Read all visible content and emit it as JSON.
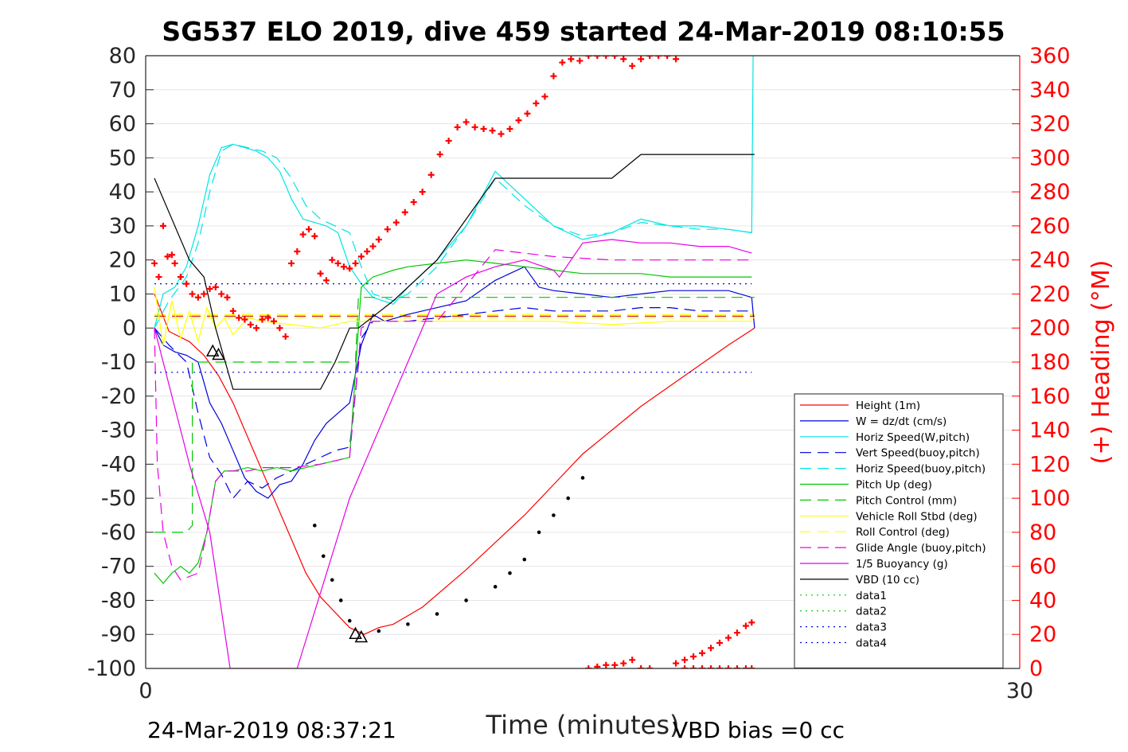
{
  "chart_data": {
    "type": "line",
    "title": "SG537 ELO 2019, dive 459 started 24-Mar-2019 08:10:55",
    "xlabel": "Time (minutes)",
    "ylabel_right": "(+) Heading (°M)",
    "xlim": [
      0,
      30
    ],
    "ylim_left": [
      -100,
      80
    ],
    "ylim_right": [
      0,
      360
    ],
    "x_ticks": [
      "0",
      "30"
    ],
    "y_ticks_left": [
      "80",
      "70",
      "60",
      "50",
      "40",
      "30",
      "20",
      "10",
      "0",
      "-10",
      "-20",
      "-30",
      "-40",
      "-50",
      "-60",
      "-70",
      "-80",
      "-90",
      "-100"
    ],
    "y_ticks_right": [
      "360",
      "340",
      "320",
      "300",
      "280",
      "260",
      "240",
      "220",
      "200",
      "180",
      "160",
      "140",
      "120",
      "100",
      "80",
      "60",
      "40",
      "20",
      "0"
    ],
    "grid": true,
    "legend_position": "lower-right",
    "footer_left": "24-Mar-2019 08:37:21",
    "footer_right": "VBD bias =0 cc",
    "colors": {
      "red": "#ff0000",
      "blue": "#0000ff",
      "cyan": "#00e5e5",
      "green": "#00c800",
      "yellow": "#ffff00",
      "magenta": "#e600e6",
      "black": "#000000"
    },
    "series": [
      {
        "name": "Height (1m)",
        "color": "#ff0000",
        "dash": "solid",
        "axis": "left",
        "x": [
          0.3,
          0.8,
          1.5,
          2.0,
          2.5,
          3.0,
          3.5,
          4.5,
          5.5,
          6.0,
          7.0,
          7.5,
          8.0,
          8.5,
          9.5,
          11,
          13,
          14,
          15,
          17,
          19,
          20,
          20.9
        ],
        "y": [
          10,
          -1,
          -4,
          -8,
          -14,
          -22,
          -32,
          -52,
          -72,
          -79,
          -88,
          -90,
          -88,
          -87,
          -82,
          -71,
          -55,
          -46,
          -37,
          -23,
          -11,
          -5,
          0
        ]
      },
      {
        "name": "W = dz/dt (cm/s)",
        "color": "#0000dd",
        "dash": "solid",
        "axis": "left",
        "x": [
          0.3,
          0.6,
          1.0,
          1.4,
          1.8,
          2.2,
          2.6,
          3.0,
          3.4,
          3.8,
          4.2,
          4.6,
          5.0,
          5.4,
          5.8,
          6.2,
          6.6,
          7.0,
          7.4,
          7.8,
          8.2,
          8.6,
          9,
          10,
          11,
          12,
          13,
          13.5,
          14,
          15,
          16,
          17,
          18,
          19,
          20,
          20.8,
          20.9
        ],
        "y": [
          0,
          -5,
          -7,
          -8,
          -10,
          -22,
          -28,
          -36,
          -44,
          -48,
          -50,
          -46,
          -45,
          -40,
          -33,
          -28,
          -25,
          -22,
          -5,
          4,
          2,
          3,
          4,
          6,
          8,
          14,
          18,
          12,
          11,
          10,
          9,
          10,
          11,
          11,
          11,
          9,
          0
        ]
      },
      {
        "name": "Horiz Speed(W,pitch)",
        "color": "#00e5e5",
        "dash": "solid",
        "axis": "left",
        "x": [
          0.3,
          0.6,
          1.0,
          1.4,
          1.8,
          2.2,
          2.6,
          3.0,
          3.4,
          3.8,
          4.2,
          4.6,
          5.0,
          5.4,
          5.8,
          6.2,
          6.6,
          7.0,
          7.4,
          7.8,
          8.5,
          9,
          10,
          11,
          12,
          13,
          14,
          15,
          16,
          17,
          18,
          19,
          20,
          20.8,
          20.85
        ],
        "y": [
          0,
          10,
          12,
          18,
          30,
          45,
          53,
          54,
          53,
          52,
          50,
          46,
          38,
          32,
          31,
          30,
          28,
          18,
          13,
          9,
          7,
          12,
          20,
          30,
          46,
          38,
          30,
          26,
          28,
          32,
          30,
          30,
          29,
          28,
          80
        ]
      },
      {
        "name": "Vert Speed(buoy,pitch)",
        "color": "#0000dd",
        "dash": "dash",
        "axis": "left",
        "x": [
          0.3,
          0.8,
          1.4,
          1.8,
          2.2,
          2.6,
          3.0,
          3.5,
          4.0,
          4.5,
          5.0,
          5.5,
          6.0,
          6.5,
          7.0,
          7.4,
          7.8,
          8.5,
          9,
          10,
          11,
          12,
          13,
          14,
          15,
          16,
          17,
          18,
          19,
          20,
          20.8
        ],
        "y": [
          0,
          -5,
          -10,
          -25,
          -38,
          -43,
          -50,
          -45,
          -47,
          -44,
          -42,
          -40,
          -38,
          -36,
          -35,
          -3,
          2,
          2,
          2,
          3,
          4,
          5,
          6,
          5,
          5,
          5,
          6,
          6,
          5,
          5,
          5
        ]
      },
      {
        "name": "Horiz Speed(buoy,pitch)",
        "color": "#00e5e5",
        "dash": "dash",
        "axis": "left",
        "x": [
          0.3,
          0.8,
          1.4,
          1.8,
          2.2,
          2.6,
          3.0,
          3.5,
          4.0,
          4.5,
          5.0,
          5.5,
          6.0,
          6.5,
          7.0,
          7.4,
          7.8,
          8.5,
          9,
          10,
          11,
          12,
          13,
          14,
          15,
          16,
          17,
          18,
          19,
          20,
          20.8
        ],
        "y": [
          0,
          8,
          15,
          25,
          40,
          52,
          54,
          53,
          52,
          50,
          44,
          36,
          32,
          30,
          28,
          18,
          10,
          8,
          10,
          18,
          30,
          44,
          36,
          30,
          27,
          28,
          31,
          30,
          29,
          29,
          28
        ]
      },
      {
        "name": "Pitch Up (deg)",
        "color": "#00c800",
        "dash": "solid",
        "axis": "left",
        "x": [
          0.3,
          0.6,
          0.9,
          1.2,
          1.5,
          1.8,
          2.1,
          2.4,
          2.7,
          3.0,
          3.5,
          4.0,
          4.5,
          5.0,
          5.5,
          6.0,
          6.5,
          7.0,
          7.4,
          7.8,
          8.5,
          9,
          10,
          11,
          12,
          13,
          14,
          15,
          16,
          17,
          18,
          19,
          20,
          20.8
        ],
        "y": [
          -72,
          -75,
          -72,
          -70,
          -72,
          -69,
          -60,
          -45,
          -42,
          -42,
          -41,
          -42,
          -41,
          -42,
          -41,
          -40,
          -39,
          -38,
          12,
          15,
          17,
          18,
          19,
          20,
          19,
          18,
          17,
          16,
          16,
          16,
          15,
          15,
          15,
          15
        ]
      },
      {
        "name": "Pitch Control (mm)",
        "color": "#00c800",
        "dash": "dash",
        "axis": "left",
        "x": [
          0.3,
          1.4,
          1.6,
          1.6,
          3.5,
          5.0,
          7.2,
          7.3,
          20.9
        ],
        "y": [
          -60,
          -60,
          -58,
          -10,
          -10,
          -10,
          -10,
          9,
          9
        ]
      },
      {
        "name": "Vehicle Roll Stbd (deg)",
        "color": "#ffff00",
        "dash": "solid",
        "axis": "left",
        "x": [
          0.3,
          0.6,
          0.9,
          1.2,
          1.5,
          1.8,
          2.1,
          2.4,
          2.7,
          3.0,
          3.5,
          4,
          5,
          6,
          7,
          8,
          9,
          10,
          12,
          14,
          16,
          18,
          20,
          20.8
        ],
        "y": [
          12,
          -5,
          8,
          -3,
          5,
          -4,
          6,
          0,
          3,
          -2,
          3,
          2,
          1,
          0,
          2,
          2,
          2,
          2,
          2,
          2,
          1,
          2,
          2,
          2
        ]
      },
      {
        "name": "Roll Control (deg)",
        "color": "#ffff00",
        "dash": "dash",
        "axis": "left",
        "x": [
          0.3,
          2,
          4,
          6,
          8,
          10,
          12,
          14,
          16,
          18,
          20,
          20.9
        ],
        "y": [
          3,
          3,
          3,
          3,
          3,
          3,
          3,
          3,
          3,
          3,
          3,
          3
        ]
      },
      {
        "name": "Glide Angle (buoy,pitch)",
        "color": "#e600e6",
        "dash": "dash",
        "axis": "left",
        "x": [
          0.3,
          0.4,
          0.6,
          0.9,
          1.2,
          1.5,
          1.8,
          2.1,
          2.4,
          2.7,
          3.0,
          3.5,
          4,
          5,
          6,
          7,
          7.4,
          7.8,
          8,
          9,
          10,
          12,
          14,
          16,
          18,
          20,
          20.8
        ],
        "y": [
          0,
          -40,
          -60,
          -70,
          -74,
          -73,
          -72,
          -60,
          -45,
          -42,
          -42,
          -42,
          -41,
          -41,
          -40,
          -38,
          0,
          2,
          2,
          2,
          2,
          23,
          21,
          20,
          20,
          20,
          20
        ]
      },
      {
        "name": "1/5 Buoyancy (g)",
        "color": "#e600e6",
        "dash": "solid",
        "axis": "left",
        "x": [
          0.3,
          1.5,
          2.2,
          2.9,
          3.9,
          4.2,
          5.2,
          7.0,
          8.0,
          9.0,
          10.0,
          11.0,
          12.0,
          13.0,
          14.0,
          14.2,
          15,
          16,
          17,
          18,
          19,
          20,
          20.8
        ],
        "y": [
          0,
          -40,
          -60,
          -100,
          -100,
          -100,
          -100,
          -50,
          -30,
          -10,
          10,
          15,
          18,
          20,
          17,
          15,
          25,
          26,
          25,
          25,
          24,
          24,
          22
        ]
      },
      {
        "name": "VBD (10 cc)",
        "color": "#000000",
        "dash": "solid",
        "axis": "left",
        "x": [
          0.3,
          1.5,
          2.0,
          2.4,
          3.0,
          4.0,
          5.0,
          5.4,
          6.0,
          6.5,
          7.0,
          7.3,
          8.5,
          10,
          12,
          13,
          14,
          15,
          16,
          17,
          19,
          20.9
        ],
        "y": [
          44,
          20,
          15,
          0,
          -18,
          -18,
          -18,
          -18,
          -18,
          -10,
          0,
          0,
          8,
          20,
          44,
          44,
          44,
          44,
          44,
          51,
          51,
          51
        ]
      },
      {
        "name": "data1",
        "color": "#00c800",
        "dash": "dot",
        "axis": "left",
        "x": [],
        "y": []
      },
      {
        "name": "data2",
        "color": "#00c800",
        "dash": "dot",
        "axis": "left",
        "x": [],
        "y": []
      },
      {
        "name": "data3",
        "color": "#0000dd",
        "dash": "dot",
        "axis": "left",
        "x": [
          0.3,
          20.8
        ],
        "y": [
          13,
          13
        ]
      },
      {
        "name": "data4",
        "color": "#0000dd",
        "dash": "dot",
        "axis": "left",
        "x": [
          0.3,
          20.8
        ],
        "y": [
          -13,
          -13
        ]
      }
    ],
    "extra_lines": [
      {
        "color": "#cc0000",
        "dash": "dash",
        "axis": "left",
        "x": [
          0.3,
          20.9
        ],
        "y": [
          3.5,
          3.5
        ]
      },
      {
        "color": "#ffff00",
        "dash": "dash",
        "axis": "left",
        "x": [
          0.3,
          20.9
        ],
        "y": [
          4,
          4
        ]
      }
    ],
    "heading_points": {
      "color": "#ff0000",
      "axis": "right",
      "x": [
        0.3,
        0.45,
        0.6,
        0.75,
        0.9,
        1.0,
        1.2,
        1.4,
        1.6,
        1.8,
        2.0,
        2.2,
        2.4,
        2.6,
        2.8,
        3.0,
        3.2,
        3.4,
        3.6,
        3.8,
        4.0,
        4.2,
        4.4,
        4.6,
        4.8,
        5.0,
        5.2,
        5.4,
        5.6,
        5.8,
        6.0,
        6.2,
        6.4,
        6.6,
        6.8,
        7.0,
        7.2,
        7.4,
        7.6,
        7.8,
        8.0,
        8.3,
        8.6,
        8.9,
        9.2,
        9.5,
        9.8,
        10.1,
        10.4,
        10.7,
        11.0,
        11.3,
        11.6,
        11.9,
        12.2,
        12.5,
        12.8,
        13.1,
        13.4,
        13.7,
        14.0,
        14.3,
        14.6,
        14.9,
        15.2,
        15.5,
        15.8,
        16.1,
        16.4,
        16.7,
        17.0,
        17.3,
        17.6,
        17.9,
        18.2,
        18.5,
        18.8,
        19.1,
        19.4,
        19.7,
        20.0,
        20.3,
        20.6,
        20.8,
        15.2,
        15.5,
        15.8,
        16.1,
        16.4,
        16.7,
        17.0,
        17.3,
        18.2,
        18.5,
        18.8,
        19.1,
        19.4,
        19.7,
        20.0,
        20.3,
        20.6,
        20.8
      ],
      "y": [
        238,
        230,
        260,
        242,
        243,
        238,
        230,
        226,
        220,
        218,
        220,
        223,
        224,
        220,
        218,
        210,
        206,
        205,
        202,
        200,
        205,
        206,
        204,
        200,
        195,
        238,
        245,
        255,
        258,
        254,
        232,
        228,
        240,
        238,
        236,
        235,
        238,
        242,
        245,
        248,
        252,
        258,
        262,
        268,
        274,
        280,
        290,
        302,
        310,
        318,
        321,
        318,
        317,
        316,
        314,
        317,
        322,
        326,
        332,
        336,
        348,
        356,
        358,
        357,
        360,
        360,
        360,
        360,
        358,
        354,
        358,
        360,
        360,
        360,
        358,
        0,
        0,
        0,
        0,
        0,
        0,
        0,
        0,
        0,
        0,
        1,
        2,
        2,
        3,
        5,
        0,
        0,
        3,
        5,
        7,
        9,
        12,
        15,
        18,
        21,
        25,
        27
      ]
    },
    "markers": [
      {
        "symbol": "triangle",
        "x": [
          2.3,
          2.5,
          7.2,
          7.4
        ],
        "y": [
          -7,
          -8,
          -90,
          -91
        ]
      },
      {
        "symbol": "dots",
        "x": [
          5.8,
          6.1,
          6.4,
          6.7,
          7.0,
          8.0,
          9.0,
          10.0,
          11.0,
          12.0,
          12.5,
          13.0,
          13.5,
          14.0,
          14.5,
          15.0
        ],
        "y": [
          -58,
          -67,
          -74,
          -80,
          -86,
          -89,
          -87,
          -84,
          -80,
          -76,
          -72,
          -68,
          -60,
          -55,
          -50,
          -44
        ]
      }
    ]
  }
}
